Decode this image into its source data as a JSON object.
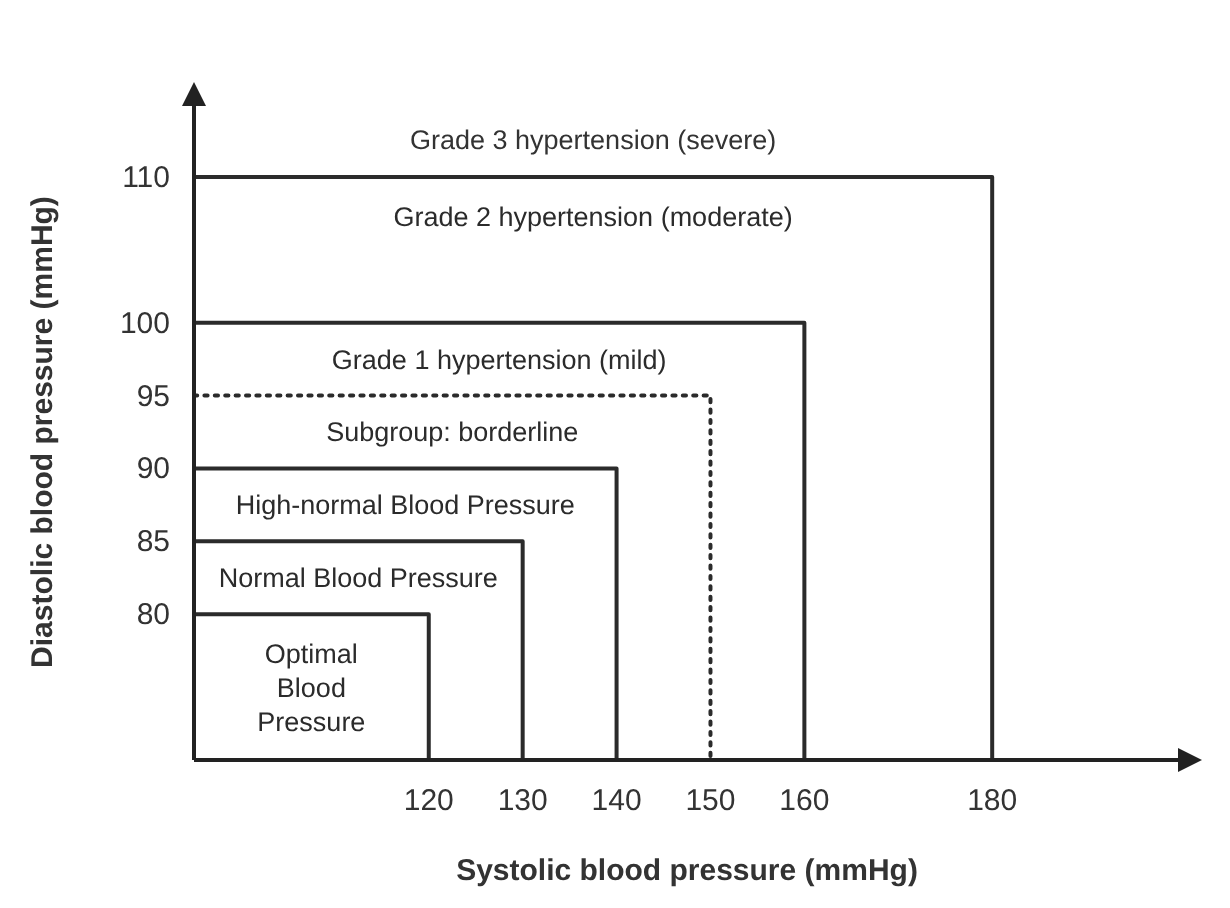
{
  "chart_data": {
    "type": "line",
    "xlabel": "Systolic blood pressure (mmHg)",
    "ylabel": "Diastolic blood pressure (mmHg)",
    "xlim": [
      95,
      200
    ],
    "ylim": [
      70,
      115
    ],
    "xticks": [
      120,
      130,
      140,
      150,
      160,
      180
    ],
    "yticks": [
      80,
      85,
      90,
      95,
      100,
      110
    ],
    "line_style": "solid",
    "series": [
      {
        "name": "Grade 2 hypertension (moderate)",
        "color": "#2b2b2b",
        "x": [
          95,
          180,
          180
        ],
        "values": [
          110,
          110,
          70
        ]
      },
      {
        "name": "Grade 1 hypertension (mild)",
        "color": "#2b2b2b",
        "x": [
          95,
          160,
          160
        ],
        "values": [
          100,
          100,
          70
        ]
      },
      {
        "name": "Subgroup: borderline",
        "color": "#2b2b2b",
        "line_style": "dotted",
        "x": [
          95,
          150,
          150
        ],
        "values": [
          95,
          95,
          70
        ]
      },
      {
        "name": "High-normal Blood Pressure",
        "color": "#2b2b2b",
        "x": [
          95,
          140,
          140
        ],
        "values": [
          90,
          90,
          70
        ]
      },
      {
        "name": "Normal Blood Pressure",
        "color": "#2b2b2b",
        "x": [
          95,
          130,
          130
        ],
        "values": [
          85,
          85,
          70
        ]
      },
      {
        "name": "Optimal Blood Pressure",
        "color": "#2b2b2b",
        "x": [
          95,
          120,
          120
        ],
        "values": [
          80,
          80,
          70
        ]
      }
    ],
    "annotations": [
      "Grade 3 hypertension (severe)"
    ]
  }
}
